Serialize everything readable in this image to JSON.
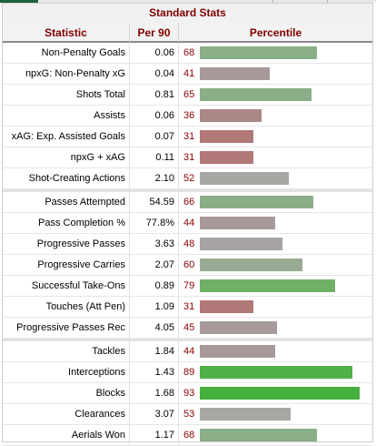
{
  "table": {
    "title": "Standard Stats",
    "headers": {
      "statistic": "Statistic",
      "per90": "Per 90",
      "percentile": "Percentile"
    },
    "groups": [
      {
        "rows": [
          {
            "stat": "Non-Penalty Goals",
            "per90": "0.06",
            "percentile": "68",
            "pct_value": 68,
            "color": "#8aaf86"
          },
          {
            "stat": "npxG: Non-Penalty xG",
            "per90": "0.04",
            "percentile": "41",
            "pct_value": 41,
            "color": "#a89a9a"
          },
          {
            "stat": "Shots Total",
            "per90": "0.81",
            "percentile": "65",
            "pct_value": 65,
            "color": "#8aaf86"
          },
          {
            "stat": "Assists",
            "per90": "0.06",
            "percentile": "36",
            "pct_value": 36,
            "color": "#ab8888"
          },
          {
            "stat": "xAG: Exp. Assisted Goals",
            "per90": "0.07",
            "percentile": "31",
            "pct_value": 31,
            "color": "#b17878"
          },
          {
            "stat": "npxG + xAG",
            "per90": "0.11",
            "percentile": "31",
            "pct_value": 31,
            "color": "#b17878"
          },
          {
            "stat": "Shot-Creating Actions",
            "per90": "2.10",
            "percentile": "52",
            "pct_value": 52,
            "color": "#a7a8a3"
          }
        ]
      },
      {
        "rows": [
          {
            "stat": "Passes Attempted",
            "per90": "54.59",
            "percentile": "66",
            "pct_value": 66,
            "color": "#8aaf86"
          },
          {
            "stat": "Pass Completion %",
            "per90": "77.8%",
            "percentile": "44",
            "pct_value": 44,
            "color": "#a89a9a"
          },
          {
            "stat": "Progressive Passes",
            "per90": "3.63",
            "percentile": "48",
            "pct_value": 48,
            "color": "#a8a2a2"
          },
          {
            "stat": "Progressive Carries",
            "per90": "2.07",
            "percentile": "60",
            "pct_value": 60,
            "color": "#9aab94"
          },
          {
            "stat": "Successful Take-Ons",
            "per90": "0.89",
            "percentile": "79",
            "pct_value": 79,
            "color": "#6fb067"
          },
          {
            "stat": "Touches (Att Pen)",
            "per90": "1.09",
            "percentile": "31",
            "pct_value": 31,
            "color": "#b17878"
          },
          {
            "stat": "Progressive Passes Rec",
            "per90": "4.05",
            "percentile": "45",
            "pct_value": 45,
            "color": "#a89a9a"
          }
        ]
      },
      {
        "rows": [
          {
            "stat": "Tackles",
            "per90": "1.84",
            "percentile": "44",
            "pct_value": 44,
            "color": "#a89a9a"
          },
          {
            "stat": "Interceptions",
            "per90": "1.43",
            "percentile": "89",
            "pct_value": 89,
            "color": "#4fb047"
          },
          {
            "stat": "Blocks",
            "per90": "1.68",
            "percentile": "93",
            "pct_value": 93,
            "color": "#45b03d"
          },
          {
            "stat": "Clearances",
            "per90": "3.07",
            "percentile": "53",
            "pct_value": 53,
            "color": "#a7a8a3"
          },
          {
            "stat": "Aerials Won",
            "per90": "1.17",
            "percentile": "68",
            "pct_value": 68,
            "color": "#8aaf86"
          }
        ]
      }
    ]
  }
}
